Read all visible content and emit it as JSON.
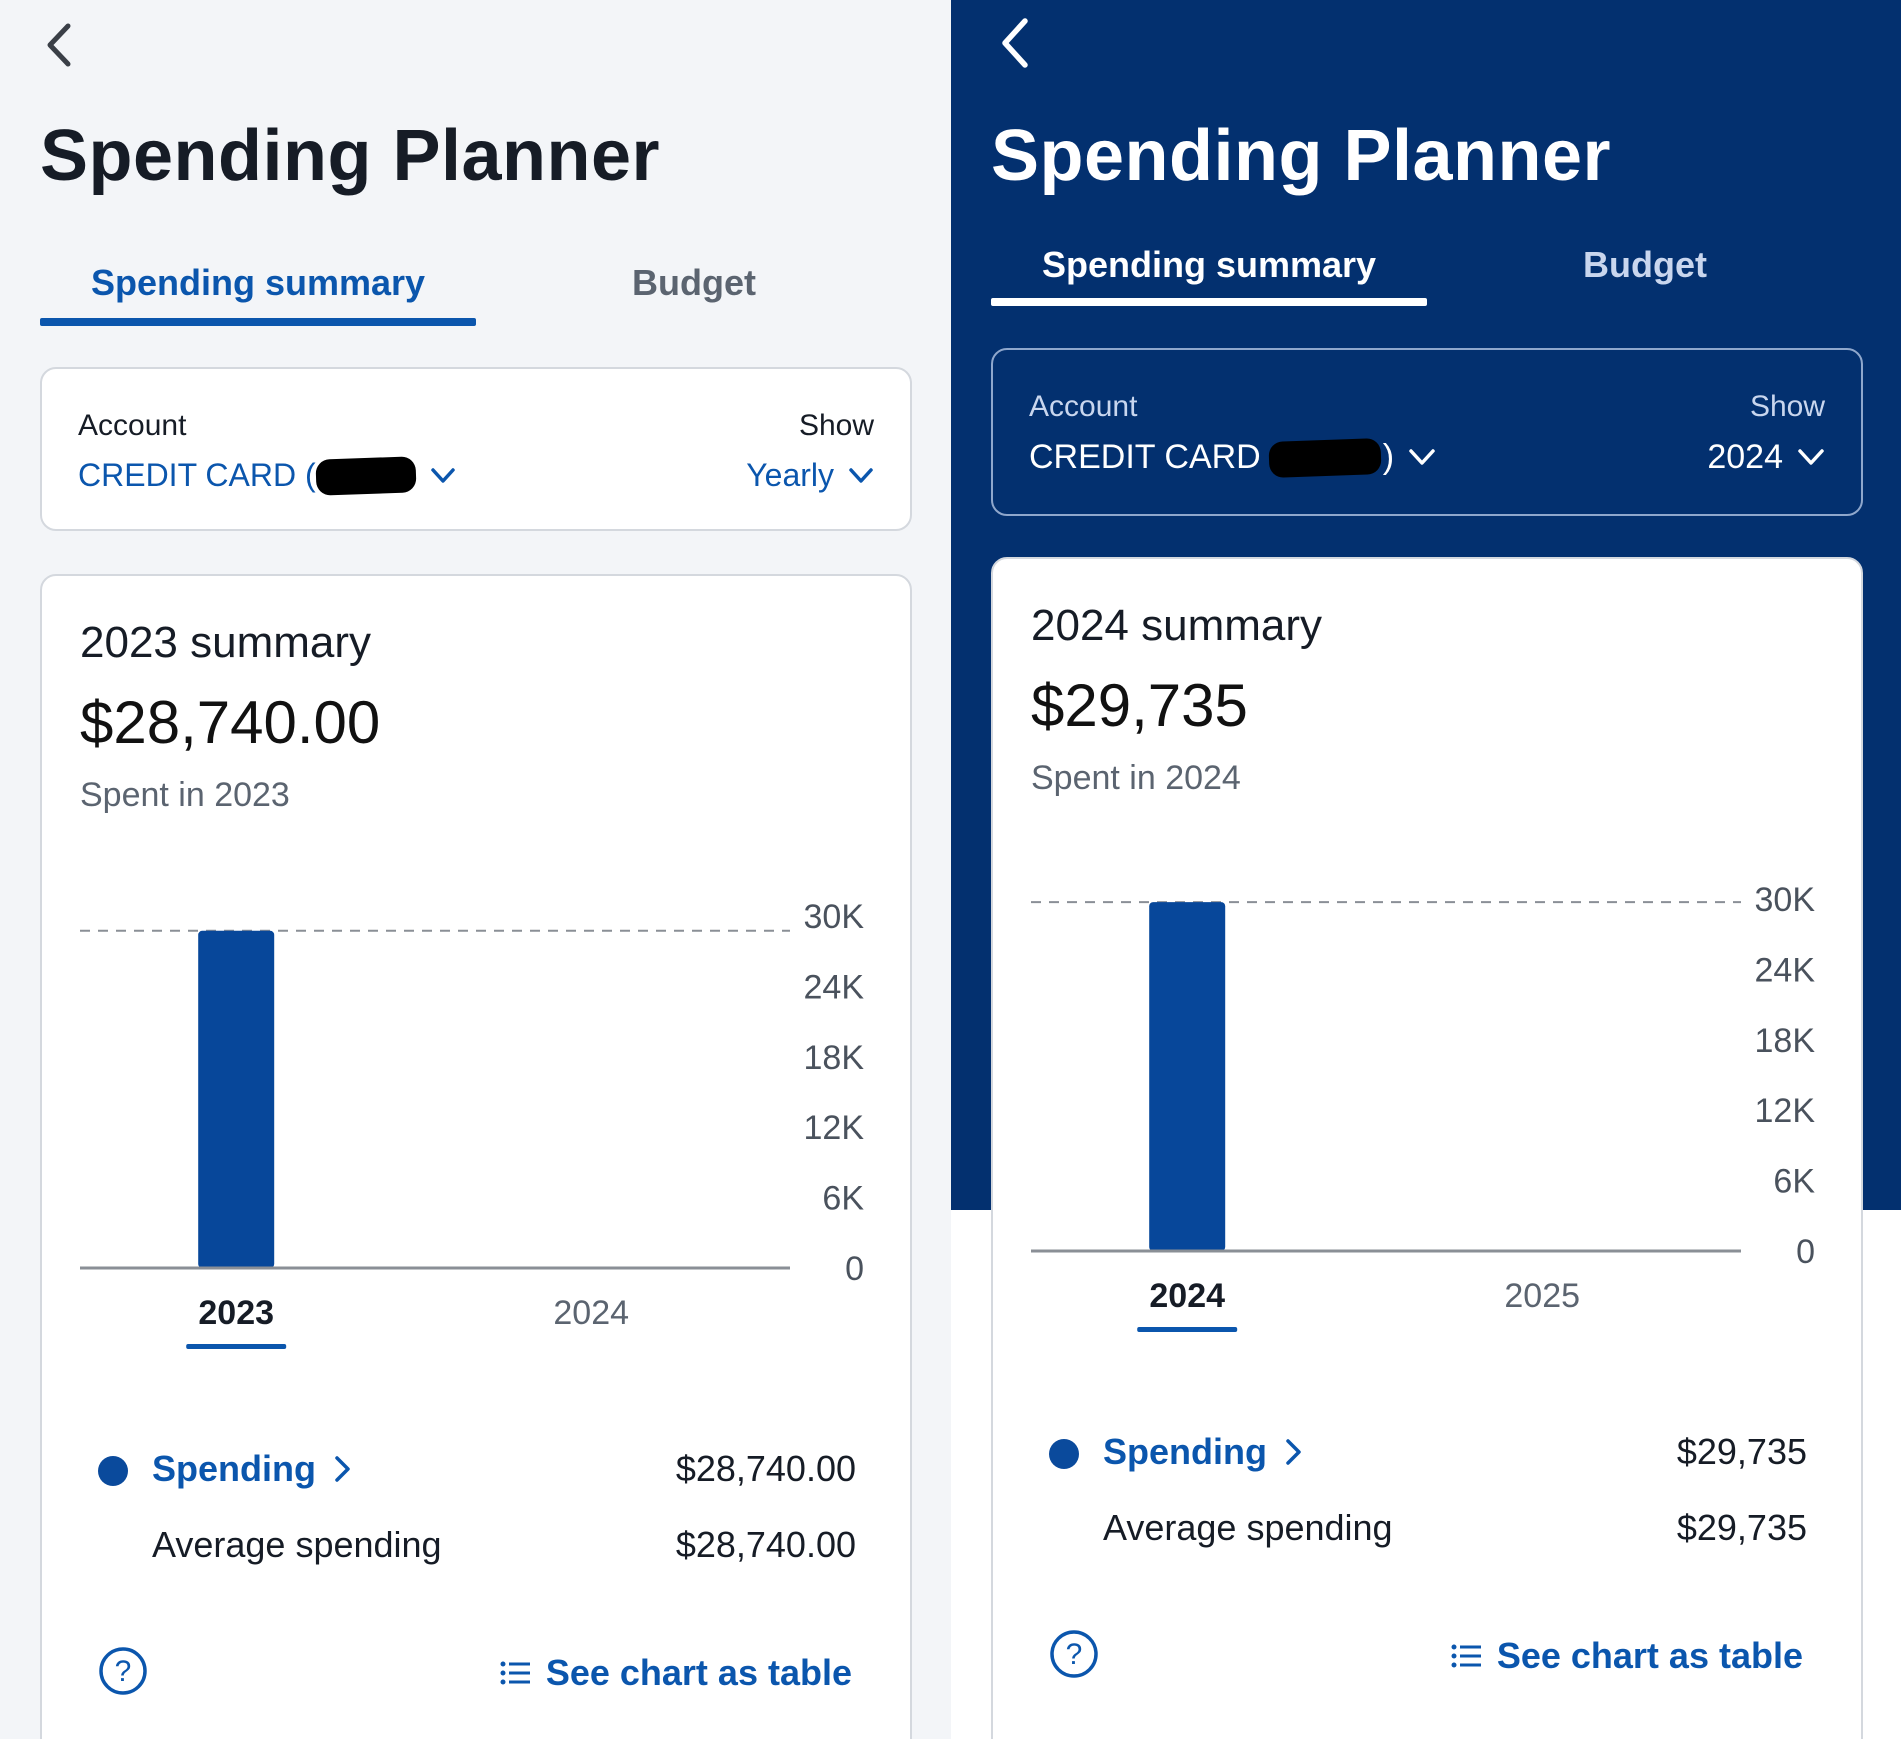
{
  "left": {
    "title": "Spending Planner",
    "tabs": [
      {
        "label": "Spending summary",
        "active": true
      },
      {
        "label": "Budget",
        "active": false
      }
    ],
    "account_label": "Account",
    "account_value": "CREDIT CARD (",
    "show_label": "Show",
    "show_value": "Yearly",
    "summary_title": "2023 summary",
    "summary_amount": "$28,740.00",
    "summary_sub": "Spent in 2023",
    "legend": {
      "spending_label": "Spending",
      "spending_value": "$28,740.00",
      "avg_label": "Average spending",
      "avg_value": "$28,740.00"
    },
    "see_table": "See chart as table"
  },
  "right": {
    "title": "Spending Planner",
    "tabs": [
      {
        "label": "Spending summary",
        "active": true
      },
      {
        "label": "Budget",
        "active": false
      }
    ],
    "account_label": "Account",
    "account_value": "CREDIT CARD",
    "account_suffix": ")",
    "show_label": "Show",
    "show_value": "2024",
    "summary_title": "2024 summary",
    "summary_amount": "$29,735",
    "summary_sub": "Spent in 2024",
    "legend": {
      "spending_label": "Spending",
      "spending_value": "$29,735",
      "avg_label": "Average spending",
      "avg_value": "$29,735"
    },
    "see_table": "See chart as table"
  },
  "colors": {
    "primary": "#0b56ad",
    "bar": "#07479a",
    "dark_header": "#03306f",
    "text": "#161c26",
    "muted": "#5b6470"
  },
  "chart_data": [
    {
      "type": "bar",
      "categories": [
        "2023",
        "2024"
      ],
      "values": [
        28740,
        0
      ],
      "selected": "2023",
      "yticks": [
        "0",
        "6K",
        "12K",
        "18K",
        "24K",
        "30K"
      ],
      "ylim": [
        0,
        30000
      ],
      "average": 28740,
      "title": "",
      "xlabel": "",
      "ylabel": ""
    },
    {
      "type": "bar",
      "categories": [
        "2024",
        "2025"
      ],
      "values": [
        29735,
        0
      ],
      "selected": "2024",
      "yticks": [
        "0",
        "6K",
        "12K",
        "18K",
        "24K",
        "30K"
      ],
      "ylim": [
        0,
        30000
      ],
      "average": 29735,
      "title": "",
      "xlabel": "",
      "ylabel": ""
    }
  ]
}
